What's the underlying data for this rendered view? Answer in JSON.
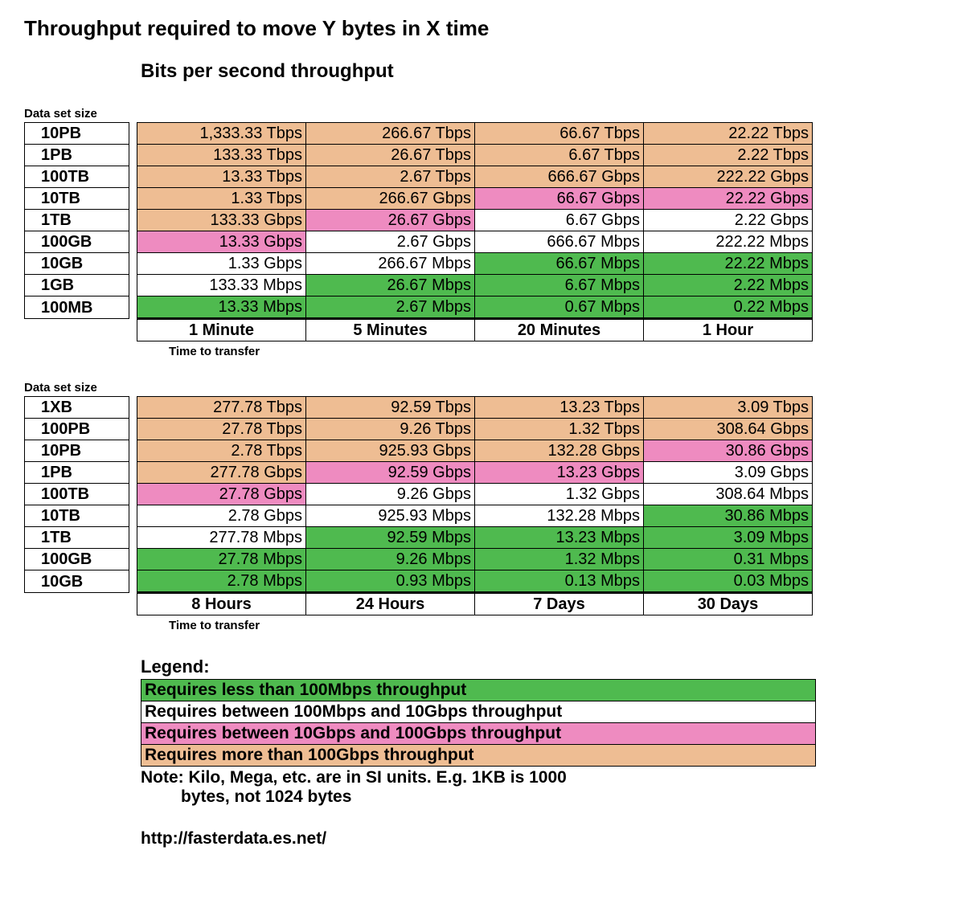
{
  "title": "Throughput required to move Y bytes in X time",
  "subtitle": "Bits per second throughput",
  "colors": {
    "green": "#4fba4f",
    "white": "#ffffff",
    "pink": "#ee8bc0",
    "orange": "#eebd93"
  },
  "table1": {
    "section_label": "Data set size",
    "rows": [
      {
        "label": "10PB",
        "cells": [
          {
            "v": "1,333.33 Tbps",
            "c": "orange"
          },
          {
            "v": "266.67 Tbps",
            "c": "orange"
          },
          {
            "v": "66.67 Tbps",
            "c": "orange"
          },
          {
            "v": "22.22 Tbps",
            "c": "orange"
          }
        ]
      },
      {
        "label": "1PB",
        "cells": [
          {
            "v": "133.33 Tbps",
            "c": "orange"
          },
          {
            "v": "26.67 Tbps",
            "c": "orange"
          },
          {
            "v": "6.67 Tbps",
            "c": "orange"
          },
          {
            "v": "2.22 Tbps",
            "c": "orange"
          }
        ]
      },
      {
        "label": "100TB",
        "cells": [
          {
            "v": "13.33 Tbps",
            "c": "orange"
          },
          {
            "v": "2.67 Tbps",
            "c": "orange"
          },
          {
            "v": "666.67 Gbps",
            "c": "orange"
          },
          {
            "v": "222.22 Gbps",
            "c": "orange"
          }
        ]
      },
      {
        "label": "10TB",
        "cells": [
          {
            "v": "1.33 Tbps",
            "c": "orange"
          },
          {
            "v": "266.67 Gbps",
            "c": "orange"
          },
          {
            "v": "66.67 Gbps",
            "c": "pink"
          },
          {
            "v": "22.22 Gbps",
            "c": "pink"
          }
        ]
      },
      {
        "label": "1TB",
        "cells": [
          {
            "v": "133.33 Gbps",
            "c": "orange"
          },
          {
            "v": "26.67 Gbps",
            "c": "pink"
          },
          {
            "v": "6.67 Gbps",
            "c": "white"
          },
          {
            "v": "2.22 Gbps",
            "c": "white"
          }
        ]
      },
      {
        "label": "100GB",
        "cells": [
          {
            "v": "13.33 Gbps",
            "c": "pink"
          },
          {
            "v": "2.67 Gbps",
            "c": "white"
          },
          {
            "v": "666.67 Mbps",
            "c": "white"
          },
          {
            "v": "222.22 Mbps",
            "c": "white"
          }
        ]
      },
      {
        "label": "10GB",
        "cells": [
          {
            "v": "1.33 Gbps",
            "c": "white"
          },
          {
            "v": "266.67 Mbps",
            "c": "white"
          },
          {
            "v": "66.67 Mbps",
            "c": "green"
          },
          {
            "v": "22.22 Mbps",
            "c": "green"
          }
        ]
      },
      {
        "label": "1GB",
        "cells": [
          {
            "v": "133.33 Mbps",
            "c": "white"
          },
          {
            "v": "26.67 Mbps",
            "c": "green"
          },
          {
            "v": "6.67 Mbps",
            "c": "green"
          },
          {
            "v": "2.22 Mbps",
            "c": "green"
          }
        ]
      },
      {
        "label": "100MB",
        "cells": [
          {
            "v": "13.33 Mbps",
            "c": "green"
          },
          {
            "v": "2.67 Mbps",
            "c": "green"
          },
          {
            "v": "0.67 Mbps",
            "c": "green"
          },
          {
            "v": "0.22 Mbps",
            "c": "green"
          }
        ]
      }
    ],
    "times": [
      "1 Minute",
      "5 Minutes",
      "20 Minutes",
      "1 Hour"
    ],
    "caption": "Time to transfer"
  },
  "table2": {
    "section_label": "Data set size",
    "rows": [
      {
        "label": "1XB",
        "cells": [
          {
            "v": "277.78 Tbps",
            "c": "orange"
          },
          {
            "v": "92.59 Tbps",
            "c": "orange"
          },
          {
            "v": "13.23 Tbps",
            "c": "orange"
          },
          {
            "v": "3.09 Tbps",
            "c": "orange"
          }
        ]
      },
      {
        "label": "100PB",
        "cells": [
          {
            "v": "27.78 Tbps",
            "c": "orange"
          },
          {
            "v": "9.26 Tbps",
            "c": "orange"
          },
          {
            "v": "1.32 Tbps",
            "c": "orange"
          },
          {
            "v": "308.64 Gbps",
            "c": "orange"
          }
        ]
      },
      {
        "label": "10PB",
        "cells": [
          {
            "v": "2.78 Tbps",
            "c": "orange"
          },
          {
            "v": "925.93 Gbps",
            "c": "orange"
          },
          {
            "v": "132.28 Gbps",
            "c": "orange"
          },
          {
            "v": "30.86 Gbps",
            "c": "pink"
          }
        ]
      },
      {
        "label": "1PB",
        "cells": [
          {
            "v": "277.78 Gbps",
            "c": "orange"
          },
          {
            "v": "92.59 Gbps",
            "c": "pink"
          },
          {
            "v": "13.23 Gbps",
            "c": "pink"
          },
          {
            "v": "3.09 Gbps",
            "c": "white"
          }
        ]
      },
      {
        "label": "100TB",
        "cells": [
          {
            "v": "27.78 Gbps",
            "c": "pink"
          },
          {
            "v": "9.26 Gbps",
            "c": "white"
          },
          {
            "v": "1.32 Gbps",
            "c": "white"
          },
          {
            "v": "308.64 Mbps",
            "c": "white"
          }
        ]
      },
      {
        "label": "10TB",
        "cells": [
          {
            "v": "2.78 Gbps",
            "c": "white"
          },
          {
            "v": "925.93 Mbps",
            "c": "white"
          },
          {
            "v": "132.28 Mbps",
            "c": "white"
          },
          {
            "v": "30.86 Mbps",
            "c": "green"
          }
        ]
      },
      {
        "label": "1TB",
        "cells": [
          {
            "v": "277.78 Mbps",
            "c": "white"
          },
          {
            "v": "92.59 Mbps",
            "c": "green"
          },
          {
            "v": "13.23 Mbps",
            "c": "green"
          },
          {
            "v": "3.09 Mbps",
            "c": "green"
          }
        ]
      },
      {
        "label": "100GB",
        "cells": [
          {
            "v": "27.78 Mbps",
            "c": "green"
          },
          {
            "v": "9.26 Mbps",
            "c": "green"
          },
          {
            "v": "1.32 Mbps",
            "c": "green"
          },
          {
            "v": "0.31 Mbps",
            "c": "green"
          }
        ]
      },
      {
        "label": "10GB",
        "cells": [
          {
            "v": "2.78 Mbps",
            "c": "green"
          },
          {
            "v": "0.93 Mbps",
            "c": "green"
          },
          {
            "v": "0.13 Mbps",
            "c": "green"
          },
          {
            "v": "0.03 Mbps",
            "c": "green"
          }
        ]
      }
    ],
    "times": [
      "8 Hours",
      "24 Hours",
      "7 Days",
      "30 Days"
    ],
    "caption": "Time to transfer"
  },
  "legend": {
    "title": "Legend:",
    "items": [
      {
        "text": "Requires less than 100Mbps throughput",
        "c": "green"
      },
      {
        "text": "Requires between 100Mbps and 10Gbps throughput",
        "c": "white"
      },
      {
        "text": "Requires between 10Gbps and 100Gbps throughput",
        "c": "pink"
      },
      {
        "text": "Requires more than 100Gbps throughput",
        "c": "orange"
      }
    ],
    "note_line1": "Note: Kilo, Mega, etc. are in SI units. E.g. 1KB is 1000",
    "note_line2": "bytes, not 1024 bytes"
  },
  "url": "http://fasterdata.es.net/"
}
